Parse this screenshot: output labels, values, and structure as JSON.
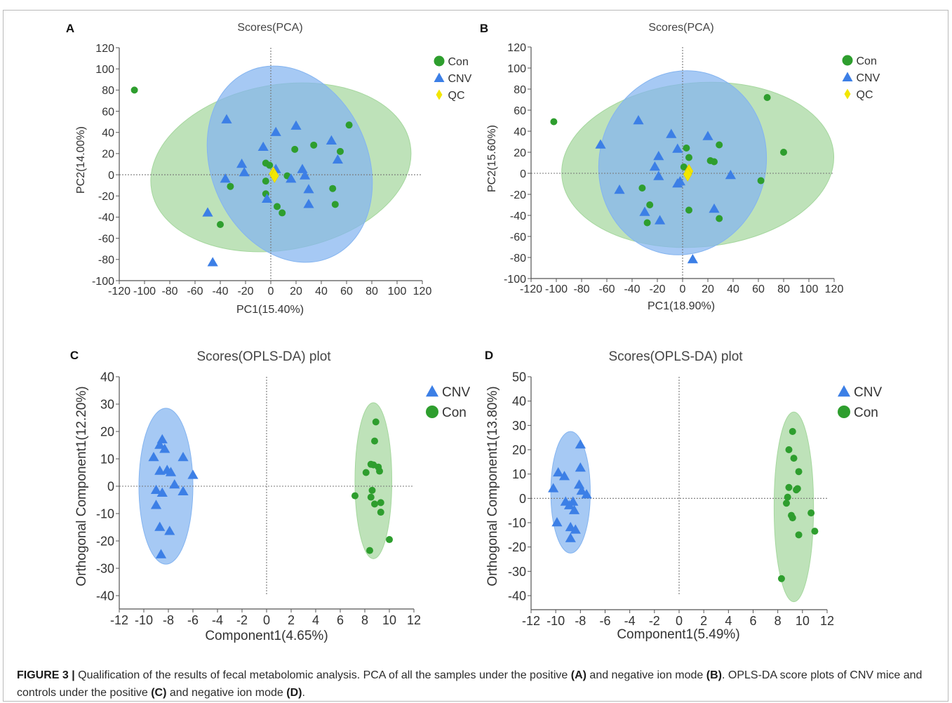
{
  "panels": [
    {
      "letter": "A",
      "title": "Scores(PCA)",
      "xlabel": "PC1(15.40%)",
      "ylabel": "PC2(14.00%)",
      "legend": [
        "Con",
        "CNV",
        "QC"
      ]
    },
    {
      "letter": "B",
      "title": "Scores(PCA)",
      "xlabel": "PC1(18.90%)",
      "ylabel": "PC2(15.60%)",
      "legend": [
        "Con",
        "CNV",
        "QC"
      ]
    },
    {
      "letter": "C",
      "title": "Scores(OPLS-DA) plot",
      "xlabel": "Component1(4.65%)",
      "ylabel": "Orthogonal Component1(12.20%)",
      "legend": [
        "CNV",
        "Con"
      ]
    },
    {
      "letter": "D",
      "title": "Scores(OPLS-DA) plot",
      "xlabel": "Component1(5.49%)",
      "ylabel": "Orthogonal Component1(13.80%)",
      "legend": [
        "CNV",
        "Con"
      ]
    }
  ],
  "colors": {
    "con": "#2e9e2e",
    "cnv": "#3c7fe6",
    "qc": "#f2e600",
    "con_ellipse": "#a5d79e",
    "cnv_ellipse": "#84b4f0",
    "overlap": "#5a9aaa"
  },
  "caption": {
    "label": "FIGURE 3 |",
    "t1": " Qualification of the results of fecal metabolomic analysis. PCA of all the samples under the positive ",
    "a": "(A)",
    "t2": " and negative ion mode ",
    "b": "(B)",
    "t3": ". OPLS-DA score plots of CNV mice and controls under the positive ",
    "c": "(C)",
    "t4": " and negative ion mode ",
    "d": "(D)",
    "t5": "."
  },
  "chart_data": [
    {
      "type": "scatter",
      "title": "Scores(PCA)",
      "xlabel": "PC1(15.40%)",
      "ylabel": "PC2(14.00%)",
      "xlim": [
        -120,
        120
      ],
      "ylim": [
        -100,
        120
      ],
      "xticks": [
        -120,
        -100,
        -80,
        -60,
        -40,
        -20,
        0,
        20,
        40,
        60,
        80,
        100,
        120
      ],
      "yticks": [
        120,
        100,
        80,
        60,
        40,
        20,
        0,
        -20,
        -40,
        -60,
        -80,
        -100
      ],
      "grid": false,
      "legend_position": "right",
      "ellipses": [
        {
          "series": "Con",
          "cx": 8,
          "cy": 7,
          "rx": 104,
          "ry": 78,
          "angle_deg": -10
        },
        {
          "series": "CNV",
          "cx": 15,
          "cy": 10,
          "rx": 62,
          "ry": 96,
          "angle_deg": -24
        }
      ],
      "series": [
        {
          "name": "Con",
          "marker": "circle",
          "points": [
            [
              -108,
              80
            ],
            [
              -32,
              -11
            ],
            [
              -40,
              -47
            ],
            [
              -4,
              -6
            ],
            [
              -4,
              -18
            ],
            [
              -4,
              11
            ],
            [
              -1,
              9
            ],
            [
              13,
              -1
            ],
            [
              9,
              -36
            ],
            [
              5,
              -30
            ],
            [
              19,
              24
            ],
            [
              34,
              28
            ],
            [
              55,
              22
            ],
            [
              62,
              47
            ],
            [
              49,
              -13
            ],
            [
              51,
              -28
            ]
          ]
        },
        {
          "name": "CNV",
          "marker": "triangle",
          "points": [
            [
              -35,
              52
            ],
            [
              -50,
              -36
            ],
            [
              -46,
              -83
            ],
            [
              -36,
              -4
            ],
            [
              -23,
              10
            ],
            [
              -21,
              2
            ],
            [
              -6,
              26
            ],
            [
              4,
              40
            ],
            [
              20,
              46
            ],
            [
              25,
              5
            ],
            [
              27,
              -1
            ],
            [
              4,
              5
            ],
            [
              16,
              -4
            ],
            [
              30,
              -14
            ],
            [
              30,
              -28
            ],
            [
              -3,
              -23
            ],
            [
              48,
              32
            ],
            [
              53,
              14
            ]
          ]
        },
        {
          "name": "QC",
          "marker": "diamond",
          "points": [
            [
              2,
              1
            ],
            [
              3,
              -1
            ]
          ]
        }
      ]
    },
    {
      "type": "scatter",
      "title": "Scores(PCA)",
      "xlabel": "PC1(18.90%)",
      "ylabel": "PC2(15.60%)",
      "xlim": [
        -120,
        120
      ],
      "ylim": [
        -100,
        120
      ],
      "xticks": [
        -120,
        -100,
        -80,
        -60,
        -40,
        -20,
        0,
        20,
        40,
        60,
        80,
        100,
        120
      ],
      "yticks": [
        120,
        100,
        80,
        60,
        40,
        20,
        0,
        -20,
        -40,
        -60,
        -80,
        -100
      ],
      "grid": false,
      "legend_position": "right",
      "ellipses": [
        {
          "series": "Con",
          "cx": 12,
          "cy": 8,
          "rx": 108,
          "ry": 78,
          "angle_deg": -5
        },
        {
          "series": "CNV",
          "cx": 0,
          "cy": 10,
          "rx": 66,
          "ry": 88,
          "angle_deg": 14
        }
      ],
      "series": [
        {
          "name": "Con",
          "marker": "circle",
          "points": [
            [
              -102,
              49
            ],
            [
              -32,
              -14
            ],
            [
              -26,
              -30
            ],
            [
              -28,
              -47
            ],
            [
              3,
              24
            ],
            [
              5,
              15
            ],
            [
              1,
              6
            ],
            [
              5,
              -35
            ],
            [
              22,
              12
            ],
            [
              25,
              11
            ],
            [
              29,
              27
            ],
            [
              29,
              -43
            ],
            [
              67,
              72
            ],
            [
              80,
              20
            ],
            [
              62,
              -7
            ]
          ]
        },
        {
          "name": "CNV",
          "marker": "triangle",
          "points": [
            [
              -65,
              27
            ],
            [
              -50,
              -16
            ],
            [
              -35,
              50
            ],
            [
              -30,
              -37
            ],
            [
              -22,
              6
            ],
            [
              -19,
              16
            ],
            [
              -19,
              -3
            ],
            [
              -18,
              -45
            ],
            [
              -9,
              37
            ],
            [
              -4,
              23
            ],
            [
              -4,
              -10
            ],
            [
              -2,
              -8
            ],
            [
              20,
              35
            ],
            [
              25,
              -34
            ],
            [
              38,
              -2
            ],
            [
              8,
              -82
            ]
          ]
        },
        {
          "name": "QC",
          "marker": "diamond",
          "points": [
            [
              5,
              2
            ],
            [
              4,
              -1
            ]
          ]
        }
      ]
    },
    {
      "type": "scatter",
      "title": "Scores(OPLS-DA) plot",
      "xlabel": "Component1(4.65%)",
      "ylabel": "Orthogonal Component1(12.20%)",
      "xlim": [
        -12,
        12
      ],
      "ylim": [
        -40,
        40
      ],
      "xticks": [
        -12,
        -10,
        -8,
        -6,
        -4,
        -2,
        0,
        2,
        4,
        6,
        8,
        10,
        12
      ],
      "yticks": [
        40,
        30,
        20,
        10,
        0,
        -10,
        -20,
        -30,
        -40
      ],
      "grid": false,
      "legend_position": "right",
      "ellipses": [
        {
          "series": "CNV",
          "cx": -8.2,
          "cy": 0,
          "rx": 2.2,
          "ry": 28.5,
          "angle_deg": 0
        },
        {
          "series": "Con",
          "cx": 8.7,
          "cy": 2,
          "rx": 1.5,
          "ry": 28.5,
          "angle_deg": 0
        }
      ],
      "series": [
        {
          "name": "CNV",
          "marker": "triangle",
          "points": [
            [
              -9.2,
              10.5
            ],
            [
              -8.5,
              17
            ],
            [
              -8.7,
              15
            ],
            [
              -8.3,
              13.5
            ],
            [
              -8.7,
              5.5
            ],
            [
              -8.1,
              5.8
            ],
            [
              -7.8,
              5
            ],
            [
              -7.5,
              0.5
            ],
            [
              -9,
              -1.5
            ],
            [
              -8.5,
              -2.5
            ],
            [
              -9,
              -7
            ],
            [
              -6.8,
              10.5
            ],
            [
              -6,
              4
            ],
            [
              -6.8,
              -2
            ],
            [
              -8.7,
              -15
            ],
            [
              -7.9,
              -16.5
            ],
            [
              -8.6,
              -25
            ]
          ]
        },
        {
          "name": "Con",
          "marker": "circle",
          "points": [
            [
              8.9,
              23.5
            ],
            [
              8.8,
              16.5
            ],
            [
              8.5,
              8
            ],
            [
              8.7,
              7.8
            ],
            [
              9.1,
              7
            ],
            [
              9.2,
              5.5
            ],
            [
              8.1,
              5
            ],
            [
              7.2,
              -3.5
            ],
            [
              8.6,
              -1.5
            ],
            [
              8.5,
              -4
            ],
            [
              8.8,
              -6.5
            ],
            [
              9.3,
              -6
            ],
            [
              9.3,
              -9.5
            ],
            [
              10,
              -19.5
            ],
            [
              8.4,
              -23.5
            ]
          ]
        }
      ]
    },
    {
      "type": "scatter",
      "title": "Scores(OPLS-DA) plot",
      "xlabel": "Component1(5.49%)",
      "ylabel": "Orthogonal Component1(13.80%)",
      "xlim": [
        -12,
        12
      ],
      "ylim": [
        -40,
        50
      ],
      "xticks": [
        -12,
        -10,
        -8,
        -6,
        -4,
        -2,
        0,
        2,
        4,
        6,
        8,
        10,
        12
      ],
      "yticks": [
        50,
        40,
        30,
        20,
        10,
        0,
        -10,
        -20,
        -30,
        -40
      ],
      "grid": false,
      "legend_position": "right",
      "ellipses": [
        {
          "series": "CNV",
          "cx": -8.8,
          "cy": 2.5,
          "rx": 1.6,
          "ry": 25,
          "angle_deg": 0
        },
        {
          "series": "Con",
          "cx": 9.3,
          "cy": -3.5,
          "rx": 1.6,
          "ry": 39,
          "angle_deg": 0
        }
      ],
      "series": [
        {
          "name": "CNV",
          "marker": "triangle",
          "points": [
            [
              -8,
              22
            ],
            [
              -9.8,
              10.5
            ],
            [
              -9.3,
              9
            ],
            [
              -8,
              12.5
            ],
            [
              -10.2,
              4
            ],
            [
              -8.1,
              5.5
            ],
            [
              -7.9,
              3
            ],
            [
              -7.5,
              1.5
            ],
            [
              -9.2,
              -1.5
            ],
            [
              -8.6,
              -1.5
            ],
            [
              -8.9,
              -3
            ],
            [
              -8.5,
              -5
            ],
            [
              -9.9,
              -10
            ],
            [
              -8.8,
              -12
            ],
            [
              -8.4,
              -13
            ],
            [
              -8.8,
              -16.5
            ]
          ]
        },
        {
          "name": "Con",
          "marker": "circle",
          "points": [
            [
              9.2,
              27.5
            ],
            [
              8.9,
              20
            ],
            [
              9.3,
              16.5
            ],
            [
              9.7,
              11
            ],
            [
              8.9,
              4.5
            ],
            [
              9.6,
              4
            ],
            [
              9.5,
              3.5
            ],
            [
              8.8,
              0.5
            ],
            [
              8.7,
              -2
            ],
            [
              9.1,
              -7
            ],
            [
              9.2,
              -8
            ],
            [
              10.7,
              -6
            ],
            [
              11,
              -13.5
            ],
            [
              9.7,
              -15
            ],
            [
              8.3,
              -33
            ]
          ]
        }
      ]
    }
  ]
}
